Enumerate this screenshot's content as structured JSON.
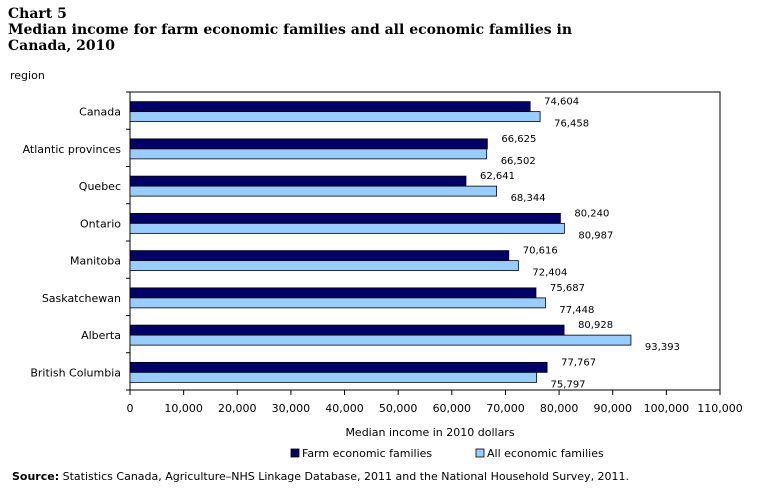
{
  "heading": {
    "label": "Chart 5",
    "title_line1": "Median income for farm economic families and all economic families in",
    "title_line2": "Canada, 2010"
  },
  "source": {
    "label": "Source:",
    "text": "Statistics Canada, Agriculture–NHS Linkage Database, 2011 and the National Household Survey, 2011."
  },
  "chart_data": {
    "type": "bar",
    "orientation": "horizontal",
    "title": "Median income for farm economic families and all economic families in Canada, 2010",
    "ylabel": "region",
    "xlabel": "Median income in 2010 dollars",
    "categories": [
      "Canada",
      "Atlantic provinces",
      "Quebec",
      "Ontario",
      "Manitoba",
      "Saskatchewan",
      "Alberta",
      "British Columbia"
    ],
    "series": [
      {
        "name": "Farm economic families",
        "color": "#000066",
        "values": [
          74604,
          66625,
          62641,
          80240,
          70616,
          75687,
          80928,
          77767
        ]
      },
      {
        "name": "All economic families",
        "color": "#99ccff",
        "values": [
          76458,
          66502,
          68344,
          80987,
          72404,
          77448,
          93393,
          75797
        ]
      }
    ],
    "xlim": [
      0,
      110000
    ],
    "xticks": [
      "0",
      "10,000",
      "20,000",
      "30,000",
      "40,000",
      "50,000",
      "60,000",
      "70,000",
      "80,000",
      "90,000",
      "100,000",
      "110,000"
    ],
    "data_labels": [
      [
        "74,604",
        "76,458"
      ],
      [
        "66,625",
        "66,502"
      ],
      [
        "62,641",
        "68,344"
      ],
      [
        "80,240",
        "80,987"
      ],
      [
        "70,616",
        "72,404"
      ],
      [
        "75,687",
        "77,448"
      ],
      [
        "80,928",
        "93,393"
      ],
      [
        "77,767",
        "75,797"
      ]
    ],
    "grid": false,
    "legend_position": "bottom"
  }
}
